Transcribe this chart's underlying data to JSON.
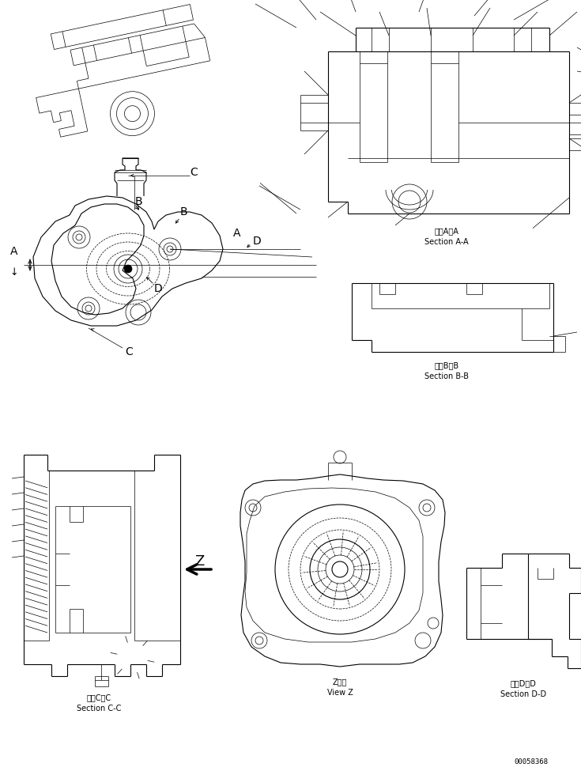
{
  "bg_color": "#ffffff",
  "line_color": "#000000",
  "labels": {
    "section_aa_jp": "断面A－A",
    "section_aa_en": "Section A-A",
    "section_bb_jp": "断面B－B",
    "section_bb_en": "Section B-B",
    "section_cc_jp": "断面C－C",
    "section_cc_en": "Section C-C",
    "section_dd_jp": "断面D－D",
    "section_dd_en": "Section D-D",
    "view_z_jp": "Z　視",
    "view_z_en": "View Z",
    "part_number": "00058368"
  },
  "font_size_label": 7.0,
  "font_size_part": 6.5,
  "font_size_letter": 10.0,
  "lw_thin": 0.5,
  "lw_med": 0.8,
  "lw_thick": 1.2
}
